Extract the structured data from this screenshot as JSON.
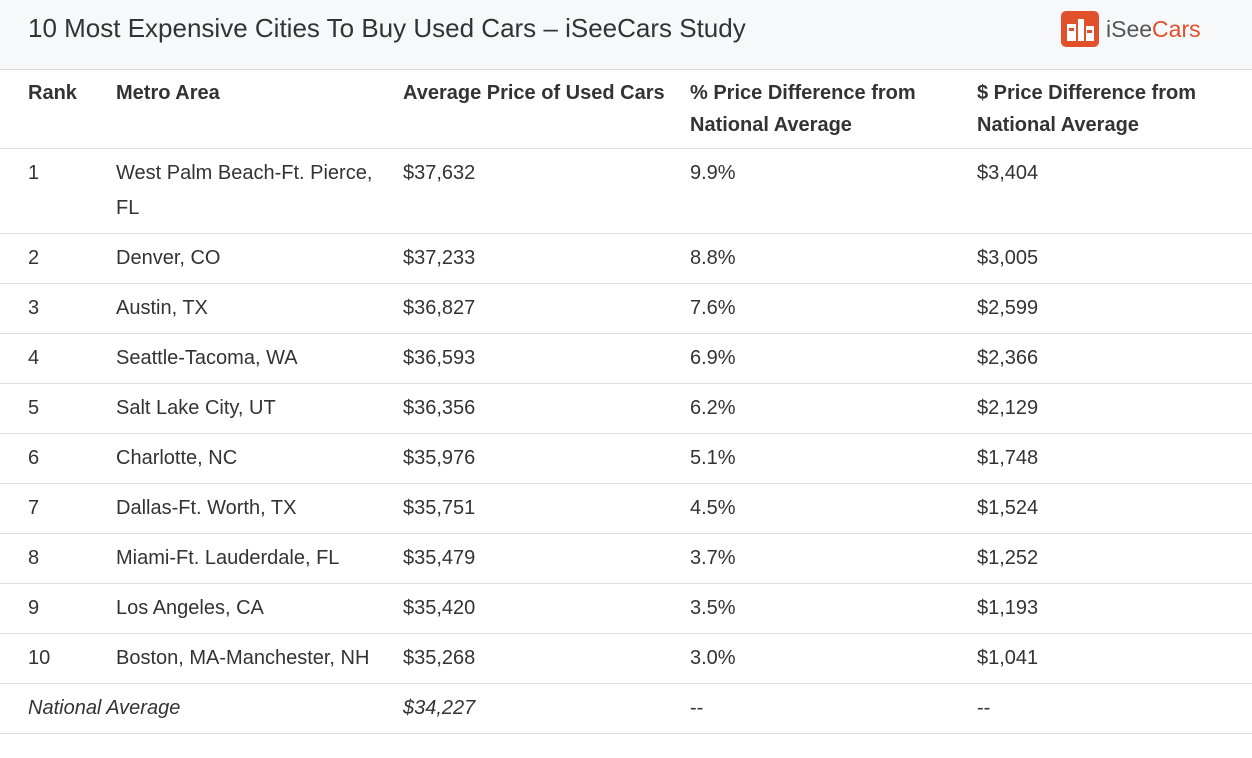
{
  "header": {
    "title": "10 Most Expensive Cities To Buy Used Cars – iSeeCars Study",
    "logo": {
      "prefix": "iSee",
      "suffix": "Cars"
    }
  },
  "table": {
    "columns": [
      "Rank",
      "Metro Area",
      "Average Price of Used Cars",
      "% Price Difference from National Average",
      "$ Price Difference from National Average"
    ],
    "rows": [
      [
        "1",
        "West Palm Beach-Ft. Pierce, FL",
        "$37,632",
        "9.9%",
        "$3,404"
      ],
      [
        "2",
        "Denver, CO",
        "$37,233",
        "8.8%",
        "$3,005"
      ],
      [
        "3",
        "Austin, TX",
        "$36,827",
        "7.6%",
        "$2,599"
      ],
      [
        "4",
        "Seattle-Tacoma, WA",
        "$36,593",
        "6.9%",
        "$2,366"
      ],
      [
        "5",
        "Salt Lake City, UT",
        "$36,356",
        "6.2%",
        "$2,129"
      ],
      [
        "6",
        "Charlotte, NC",
        "$35,976",
        "5.1%",
        "$1,748"
      ],
      [
        "7",
        "Dallas-Ft. Worth, TX",
        "$35,751",
        "4.5%",
        "$1,524"
      ],
      [
        "8",
        "Miami-Ft. Lauderdale, FL",
        "$35,479",
        "3.7%",
        "$1,252"
      ],
      [
        "9",
        "Los Angeles, CA",
        "$35,420",
        "3.5%",
        "$1,193"
      ],
      [
        "10",
        "Boston, MA-Manchester, NH",
        "$35,268",
        "3.0%",
        "$1,041"
      ]
    ],
    "footer": [
      "National Average",
      "$34,227",
      "--",
      "--"
    ]
  }
}
